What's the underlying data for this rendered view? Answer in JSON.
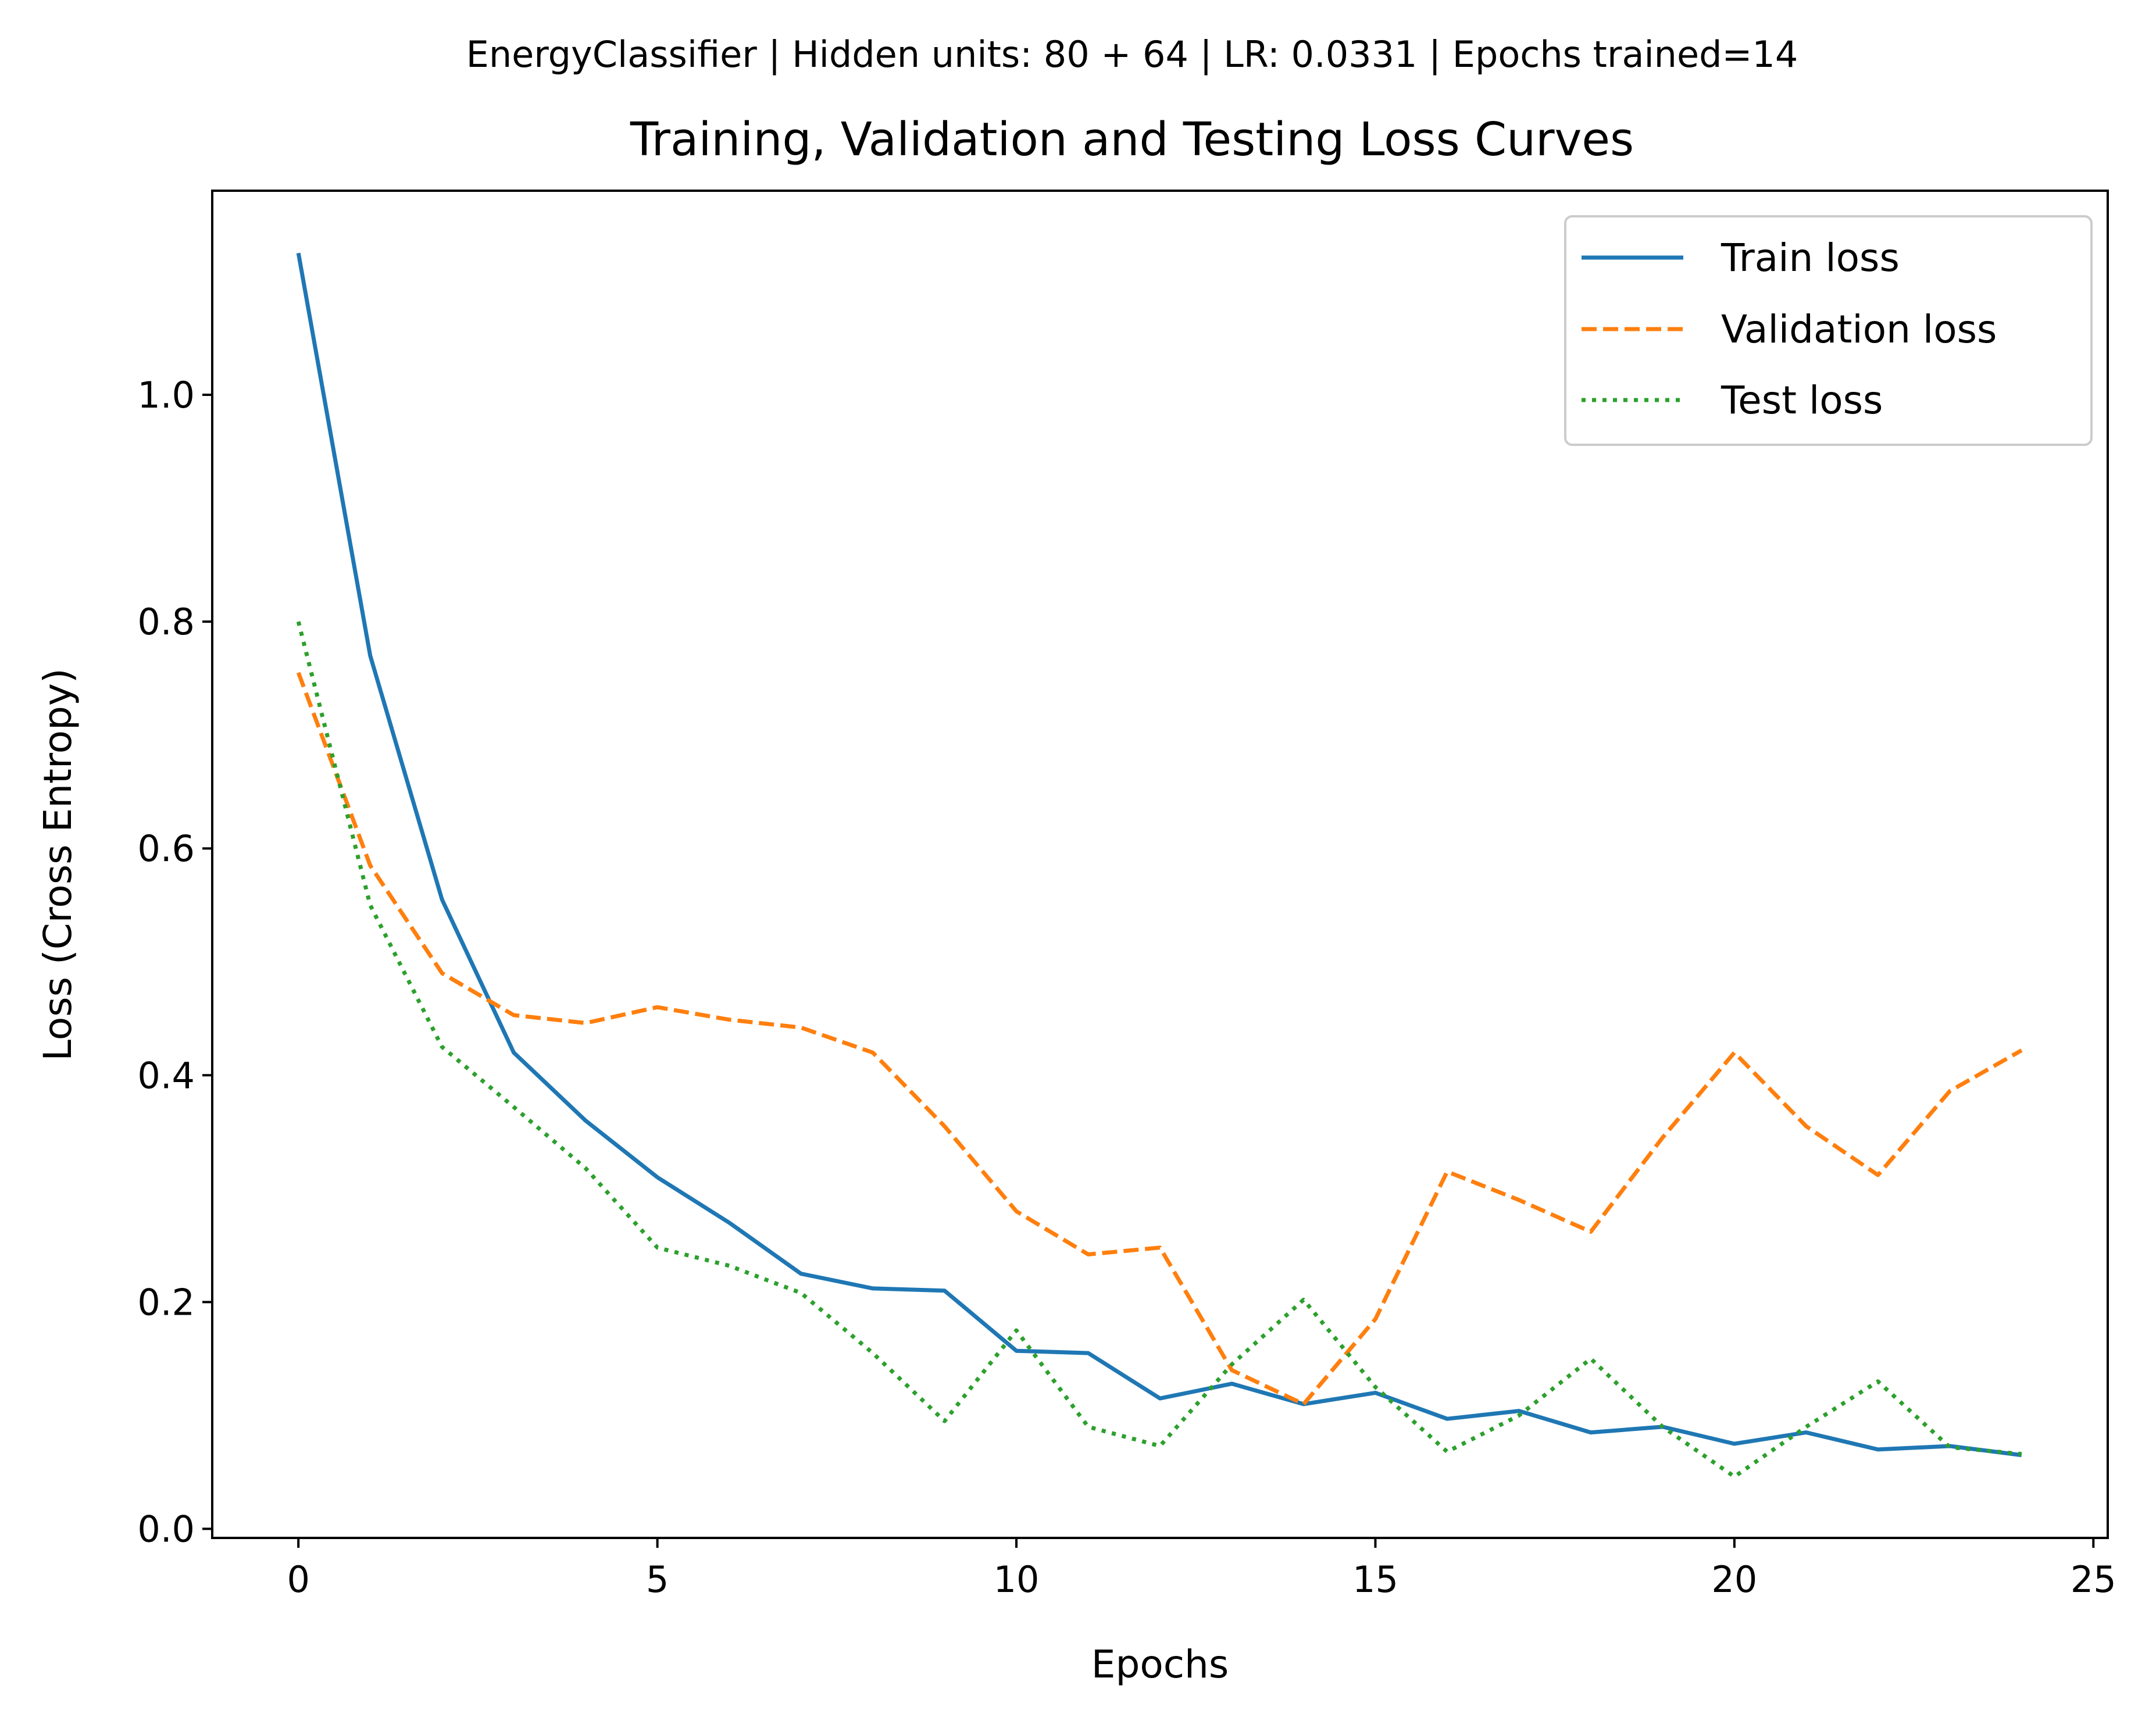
{
  "chart_data": {
    "type": "line",
    "suptitle": "EnergyClassifier | Hidden units: 80 + 64 | LR: 0.0331 | Epochs trained=14",
    "title": "Training, Validation and Testing Loss Curves",
    "xlabel": "Epochs",
    "ylabel": "Loss (Cross Entropy)",
    "xlim": [
      -1.2,
      25.2
    ],
    "ylim": [
      -0.008,
      1.18
    ],
    "xticks": [
      0,
      5,
      10,
      15,
      20,
      25
    ],
    "yticks": [
      0.0,
      0.2,
      0.4,
      0.6,
      0.8,
      1.0
    ],
    "xtick_labels": [
      "0",
      "5",
      "10",
      "15",
      "20",
      "25"
    ],
    "ytick_labels": [
      "0.0",
      "0.2",
      "0.4",
      "0.6",
      "0.8",
      "1.0"
    ],
    "grid": false,
    "legend_position": "top-right",
    "x": [
      0,
      1,
      2,
      3,
      4,
      5,
      6,
      7,
      8,
      9,
      10,
      11,
      12,
      13,
      14,
      15,
      16,
      17,
      18,
      19,
      20,
      21,
      22,
      23,
      24
    ],
    "series": [
      {
        "name": "Train loss",
        "color": "#1f77b4",
        "dash": "solid",
        "values": [
          1.125,
          0.77,
          0.555,
          0.42,
          0.36,
          0.31,
          0.27,
          0.225,
          0.212,
          0.21,
          0.157,
          0.155,
          0.115,
          0.128,
          0.11,
          0.12,
          0.097,
          0.104,
          0.085,
          0.09,
          0.075,
          0.085,
          0.07,
          0.073,
          0.065
        ]
      },
      {
        "name": "Validation loss",
        "color": "#ff7f0e",
        "dash": "dashed",
        "values": [
          0.755,
          0.585,
          0.49,
          0.453,
          0.446,
          0.46,
          0.449,
          0.442,
          0.42,
          0.355,
          0.28,
          0.242,
          0.248,
          0.14,
          0.11,
          0.185,
          0.315,
          0.29,
          0.262,
          0.345,
          0.42,
          0.355,
          0.312,
          0.386,
          0.422
        ]
      },
      {
        "name": "Test loss",
        "color": "#2ca02c",
        "dash": "dotted",
        "values": [
          0.8,
          0.55,
          0.425,
          0.372,
          0.318,
          0.248,
          0.232,
          0.208,
          0.155,
          0.095,
          0.175,
          0.09,
          0.073,
          0.145,
          0.202,
          0.125,
          0.068,
          0.1,
          0.15,
          0.09,
          0.046,
          0.09,
          0.13,
          0.072,
          0.066
        ]
      }
    ]
  }
}
